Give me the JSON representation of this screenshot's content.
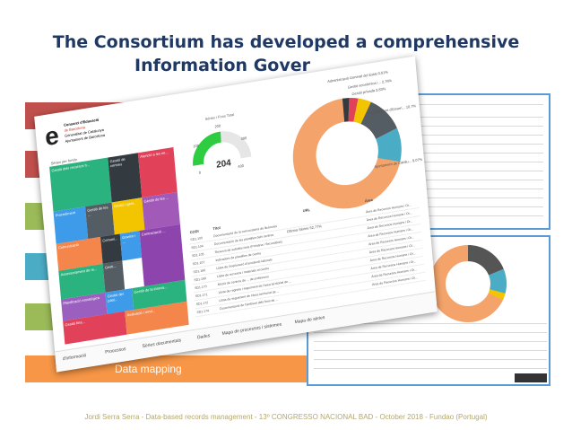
{
  "slide": {
    "title_line1": "The Consortium has developed a comprehensive",
    "title_line2": "Information Gover",
    "footer": "Jordi Serra Serra - Data-based records management - 13º CONGRESSO NACIONAL BAD - October 2018 - Fundao (Portugal)",
    "data_mapping_label": "Data mapping"
  },
  "colors": {
    "title": "#1f3864",
    "bar_red": "#c0504d",
    "bar_green": "#9bbb59",
    "bar_blue": "#4bacc6",
    "bar_orange": "#f79646",
    "screenshot_border": "#5b9bd5"
  },
  "dashboard": {
    "logo_lines": [
      "Consorci d'Educació",
      "de Barcelona",
      "Generalitat de Catalunya",
      "Ajuntament de Barcelona"
    ],
    "gauge": {
      "label": "Sèries i Fons Total",
      "value": "204",
      "min": "0",
      "max": "400",
      "tick_a": "100",
      "tick_b": "200",
      "tick_c": "300",
      "fraction": 0.51
    },
    "treemap_title": "Sèries per fondo",
    "treemap_cells": [
      "Gestió dels recursos h...",
      "Gestió de centres",
      "Atenció a les ne...",
      "Procediment",
      "Gestió de les ...",
      "Gestió i gest...",
      "Gestió de les ...",
      "Comunicació",
      "Comuni...",
      "Govern i ...",
      "Assessorament de re...",
      "Gesti...",
      "Planificació estratègica",
      "Gestió del patri...",
      "Contractació ...",
      "Gestió de la innova...",
      "Gestió fina...",
      "Avaluació i rend..."
    ],
    "donut_labels": [
      "Administració General del Estat 0,61%",
      "Gestió econòmica i... 2,76%",
      "Gestió privada 3,83%",
      "Departament d'Ensen... 10,7%",
      "Ajuntament de Catalu... 9,07%",
      "Oficina Sèries 52,77%"
    ],
    "table": {
      "col_code": "CODI",
      "col_title": "Títol",
      "col_url": "URL",
      "col_area": "Àrea",
      "rows": [
        {
          "code": "SD1.100",
          "title": "Documentació de la convocatòria de llicències",
          "area": "Àrea de Recursos Humans i Or..."
        },
        {
          "code": "SD1.104",
          "title": "Documentació de les plantilles dels centres",
          "area": "Àrea de Recursos Humans i Or..."
        },
        {
          "code": "SD1.105",
          "title": "Reserva de substitucions (Primària i Secundària)",
          "area": "Àrea de Recursos Humans i Or..."
        },
        {
          "code": "SD1.107",
          "title": "Indicadors de plantilles de centre",
          "area": "Àrea de Recursos Humans i Or..."
        },
        {
          "code": "SD1.166",
          "title": "Llista de l'exploració d'accidents laborals",
          "area": "Àrea de Recursos Humans i Or..."
        },
        {
          "code": "SD1.169",
          "title": "Llista de recursos i materials al centre",
          "area": "Àrea de Recursos Humans i Or..."
        },
        {
          "code": "SD1.170",
          "title": "Moció de centres de ... de professors",
          "area": "Àrea de Recursos Humans i Or..."
        },
        {
          "code": "SD1.171",
          "title": "Llista de registre i seguiment de l'àrea territorial de ...",
          "area": "Àrea de Recursos Humans i Or..."
        },
        {
          "code": "SD1.172",
          "title": "Llista de seguiment de l'àrea territorial de ...",
          "area": "Àrea de Recursos Humans i Or..."
        },
        {
          "code": "SD1.174",
          "title": "Documentació de l'ambient dels fons de ...",
          "area": "Àrea de Recursos Humans i Or..."
        }
      ]
    },
    "tabs": [
      "d'informació",
      "Processos",
      "Sèries documentals",
      "Dades",
      "Mapa de processos i sistemes",
      "Mapa de sèries"
    ]
  }
}
